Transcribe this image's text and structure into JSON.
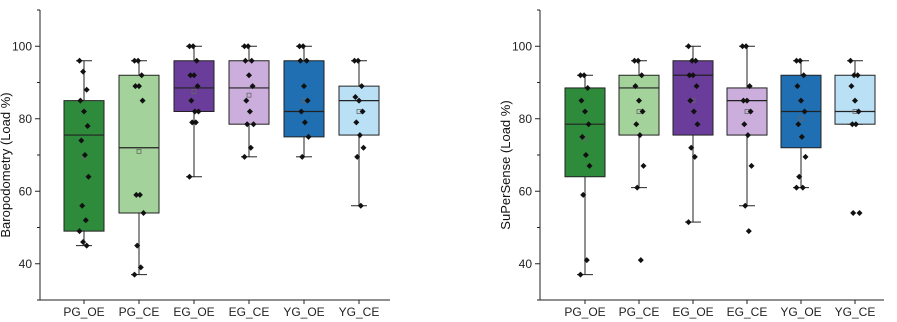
{
  "chart_data": [
    {
      "type": "box",
      "ylabel": "Baropodometry (Load %)",
      "xlabel": "",
      "ylim": [
        30,
        110
      ],
      "yticks": [
        40,
        60,
        80,
        100
      ],
      "grid": false,
      "categories": [
        "PG_OE",
        "PG_CE",
        "EG_OE",
        "EG_CE",
        "YG_OE",
        "YG_CE"
      ],
      "colors": [
        "#2e8b3b",
        "#a3d39b",
        "#6a3d9a",
        "#cbaedc",
        "#1f6fb2",
        "#b9e0f5"
      ],
      "boxes": [
        {
          "whisker_low": 45,
          "q1": 49,
          "median": 75.5,
          "q3": 85,
          "whisker_high": 96,
          "mean": 69.5,
          "points": [
            96,
            93,
            88,
            85,
            82,
            78,
            74,
            70,
            64,
            56,
            52,
            49,
            46,
            45
          ]
        },
        {
          "whisker_low": 37,
          "q1": 54,
          "median": 72,
          "q3": 92,
          "whisker_high": 96,
          "mean": 71,
          "points": [
            96,
            96,
            92,
            89,
            89,
            85,
            59,
            59,
            54,
            45,
            39,
            37
          ]
        },
        {
          "whisker_low": 64,
          "q1": 82,
          "median": 88.5,
          "q3": 96,
          "whisker_high": 100,
          "mean": 87.5,
          "points": [
            100,
            100,
            96,
            92,
            92,
            89,
            85,
            82,
            82,
            79,
            79,
            64
          ]
        },
        {
          "whisker_low": 69.5,
          "q1": 78.5,
          "median": 88.5,
          "q3": 96,
          "whisker_high": 100,
          "mean": 86.5,
          "points": [
            100,
            100,
            96,
            96,
            92,
            89,
            85,
            82,
            78.5,
            78.5,
            72,
            69.5
          ]
        },
        {
          "whisker_low": 69.5,
          "q1": 75,
          "median": 82,
          "q3": 96,
          "whisker_high": 100,
          "mean": 85,
          "points": [
            100,
            100,
            96,
            96,
            89,
            85,
            82,
            79,
            75,
            69.5
          ]
        },
        {
          "whisker_low": 56,
          "q1": 75.5,
          "median": 85,
          "q3": 89,
          "whisker_high": 96,
          "mean": 82,
          "points": [
            96,
            96,
            89,
            86,
            85,
            82,
            79,
            75.5,
            72,
            69.5,
            56
          ]
        }
      ]
    },
    {
      "type": "box",
      "ylabel": "SuPerSense (Load %)",
      "xlabel": "",
      "ylim": [
        30,
        110
      ],
      "yticks": [
        40,
        60,
        80,
        100
      ],
      "grid": false,
      "categories": [
        "PG_OE",
        "PG_CE",
        "EG_OE",
        "EG_CE",
        "YG_OE",
        "YG_CE"
      ],
      "colors": [
        "#2e8b3b",
        "#a3d39b",
        "#6a3d9a",
        "#cbaedc",
        "#1f6fb2",
        "#b9e0f5"
      ],
      "boxes": [
        {
          "whisker_low": 37,
          "q1": 64,
          "median": 78.5,
          "q3": 88.5,
          "whisker_high": 92,
          "mean": 74.5,
          "points": [
            92,
            92,
            88.5,
            85,
            82,
            78.5,
            75,
            70,
            67,
            59,
            41,
            37
          ]
        },
        {
          "whisker_low": 61,
          "q1": 75.5,
          "median": 88.5,
          "q3": 92,
          "whisker_high": 96,
          "mean": 82,
          "points": [
            96,
            96,
            92,
            89,
            85,
            82,
            78.5,
            75.5,
            67,
            61,
            41
          ]
        },
        {
          "whisker_low": 51.5,
          "q1": 75.5,
          "median": 92,
          "q3": 96,
          "whisker_high": 100,
          "mean": 85,
          "points": [
            100,
            96,
            96,
            92,
            92,
            89,
            85,
            82,
            78.5,
            72,
            69.5,
            51.5
          ]
        },
        {
          "whisker_low": 56,
          "q1": 75.5,
          "median": 85,
          "q3": 88.5,
          "whisker_high": 100,
          "mean": 82,
          "points": [
            100,
            100,
            89,
            85,
            85,
            82,
            78.5,
            75.5,
            67,
            56,
            49
          ]
        },
        {
          "whisker_low": 61,
          "q1": 72,
          "median": 82,
          "q3": 92,
          "whisker_high": 96,
          "mean": 80,
          "points": [
            96,
            96,
            92,
            89,
            85,
            82,
            78.5,
            75,
            69.5,
            64,
            61,
            61
          ]
        },
        {
          "whisker_low": 78.5,
          "q1": 78.5,
          "median": 82,
          "q3": 92,
          "whisker_high": 96,
          "mean": 82,
          "points": [
            96,
            92,
            92,
            89,
            85,
            82,
            78.5,
            78.5,
            54,
            54
          ]
        }
      ]
    }
  ]
}
